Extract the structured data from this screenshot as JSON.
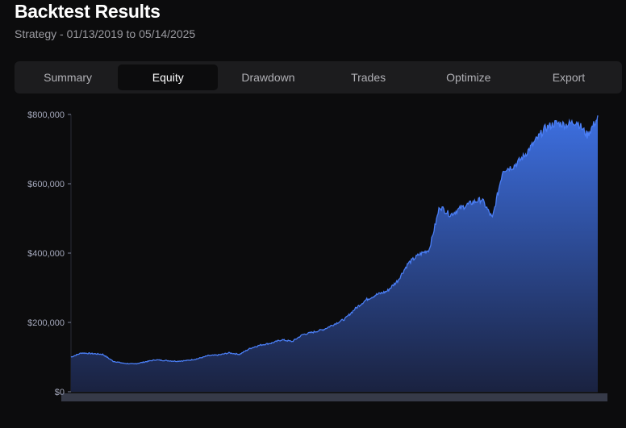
{
  "header": {
    "title": "Backtest Results",
    "subtitle": "Strategy - 01/13/2019 to 05/14/2025"
  },
  "tabs": [
    {
      "label": "Summary",
      "active": false
    },
    {
      "label": "Equity",
      "active": true
    },
    {
      "label": "Drawdown",
      "active": false
    },
    {
      "label": "Trades",
      "active": false
    },
    {
      "label": "Optimize",
      "active": false
    },
    {
      "label": "Export",
      "active": false
    }
  ],
  "colors": {
    "line": "#4a7ef5",
    "fill_top": "#3d6fe0",
    "fill_bottom": "#1a2240",
    "axis": "#7a7f96"
  },
  "chart_data": {
    "type": "area",
    "title": "",
    "xlabel": "",
    "ylabel": "",
    "ylim": [
      0,
      800000
    ],
    "yticks": [
      "$0",
      "$200,000",
      "$400,000",
      "$600,000",
      "$800,000"
    ],
    "ytick_values": [
      0,
      200000,
      400000,
      600000,
      800000
    ],
    "grid": false,
    "x_range": [
      "01/13/2019",
      "05/14/2025"
    ],
    "series": [
      {
        "values": [
          100000,
          112000,
          110000,
          108000,
          88000,
          82000,
          80000,
          86000,
          92000,
          90000,
          88000,
          90000,
          95000,
          104000,
          106000,
          112000,
          108000,
          125000,
          135000,
          140000,
          150000,
          145000,
          165000,
          172000,
          180000,
          195000,
          210000,
          240000,
          265000,
          280000,
          290000,
          320000,
          370000,
          395000,
          410000,
          535000,
          510000,
          530000,
          545000,
          555000,
          500000,
          640000,
          650000,
          680000,
          720000,
          760000,
          775000,
          770000,
          780000,
          740000,
          790000
        ]
      }
    ]
  }
}
